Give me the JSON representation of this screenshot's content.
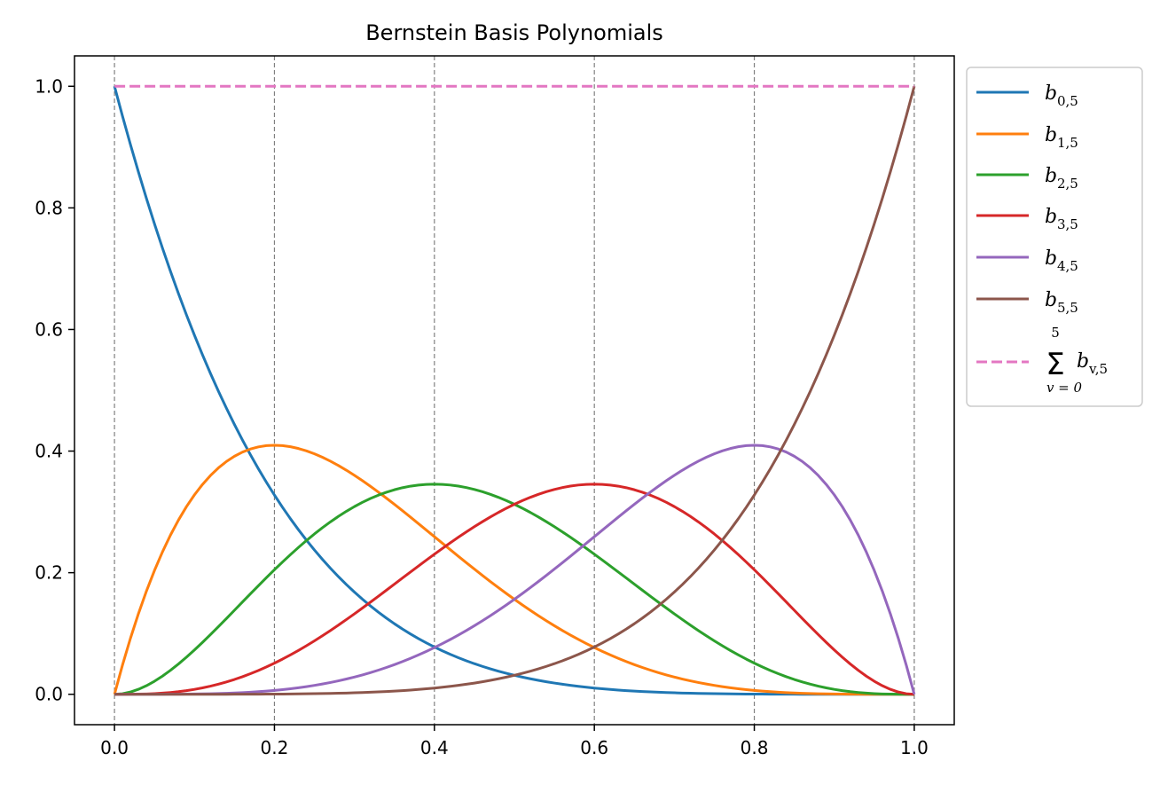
{
  "chart_data": {
    "type": "line",
    "title": "Bernstein Basis Polynomials",
    "xlabel": "",
    "ylabel": "",
    "xlim": [
      -0.05,
      1.05
    ],
    "ylim": [
      -0.05,
      1.05
    ],
    "x_ticks": [
      "0.0",
      "0.2",
      "0.4",
      "0.6",
      "0.8",
      "1.0"
    ],
    "y_ticks": [
      "0.0",
      "0.2",
      "0.4",
      "0.6",
      "0.8",
      "1.0"
    ],
    "vertical_gridlines_at": [
      0,
      0.2,
      0.4,
      0.6,
      0.8,
      1.0
    ],
    "grid": "vertical dashed gray lines at x ticks",
    "legend_placement": "outside-upper-right",
    "x": [
      0,
      0.1,
      0.2,
      0.3,
      0.4,
      0.5,
      0.6,
      0.7,
      0.8,
      0.9,
      1.0
    ],
    "series": [
      {
        "name": "b",
        "subscript": "0,5",
        "color": "#1f77b4",
        "style": "solid",
        "values": [
          1,
          0.59049,
          0.32768,
          0.16807,
          0.07776,
          0.03125,
          0.01024,
          0.00243,
          0.00032,
          1e-05,
          0
        ]
      },
      {
        "name": "b",
        "subscript": "1,5",
        "color": "#ff7f0e",
        "style": "solid",
        "values": [
          0,
          0.32805,
          0.4096,
          0.36015,
          0.2592,
          0.15625,
          0.0768,
          0.02835,
          0.0064,
          0.00045,
          0
        ]
      },
      {
        "name": "b",
        "subscript": "2,5",
        "color": "#2ca02c",
        "style": "solid",
        "values": [
          0,
          0.0729,
          0.2048,
          0.3087,
          0.3456,
          0.3125,
          0.2304,
          0.1323,
          0.0512,
          0.0081,
          0
        ]
      },
      {
        "name": "b",
        "subscript": "3,5",
        "color": "#d62728",
        "style": "solid",
        "values": [
          0,
          0.0081,
          0.0512,
          0.1323,
          0.2304,
          0.3125,
          0.3456,
          0.3087,
          0.2048,
          0.0729,
          0
        ]
      },
      {
        "name": "b",
        "subscript": "4,5",
        "color": "#9467bd",
        "style": "solid",
        "values": [
          0,
          0.00045,
          0.0064,
          0.02835,
          0.0768,
          0.15625,
          0.2592,
          0.36015,
          0.4096,
          0.32805,
          0
        ]
      },
      {
        "name": "b",
        "subscript": "5,5",
        "color": "#8c564b",
        "style": "solid",
        "values": [
          0,
          1e-05,
          0.00032,
          0.00243,
          0.01024,
          0.03125,
          0.07776,
          0.16807,
          0.32768,
          0.59049,
          1
        ]
      },
      {
        "name": "Σ b",
        "subscript": "v,5",
        "sum_lower": "v = 0",
        "sum_upper": "5",
        "color": "#e377c2",
        "style": "dashed",
        "values": [
          1,
          1,
          1,
          1,
          1,
          1,
          1,
          1,
          1,
          1,
          1
        ]
      }
    ]
  }
}
